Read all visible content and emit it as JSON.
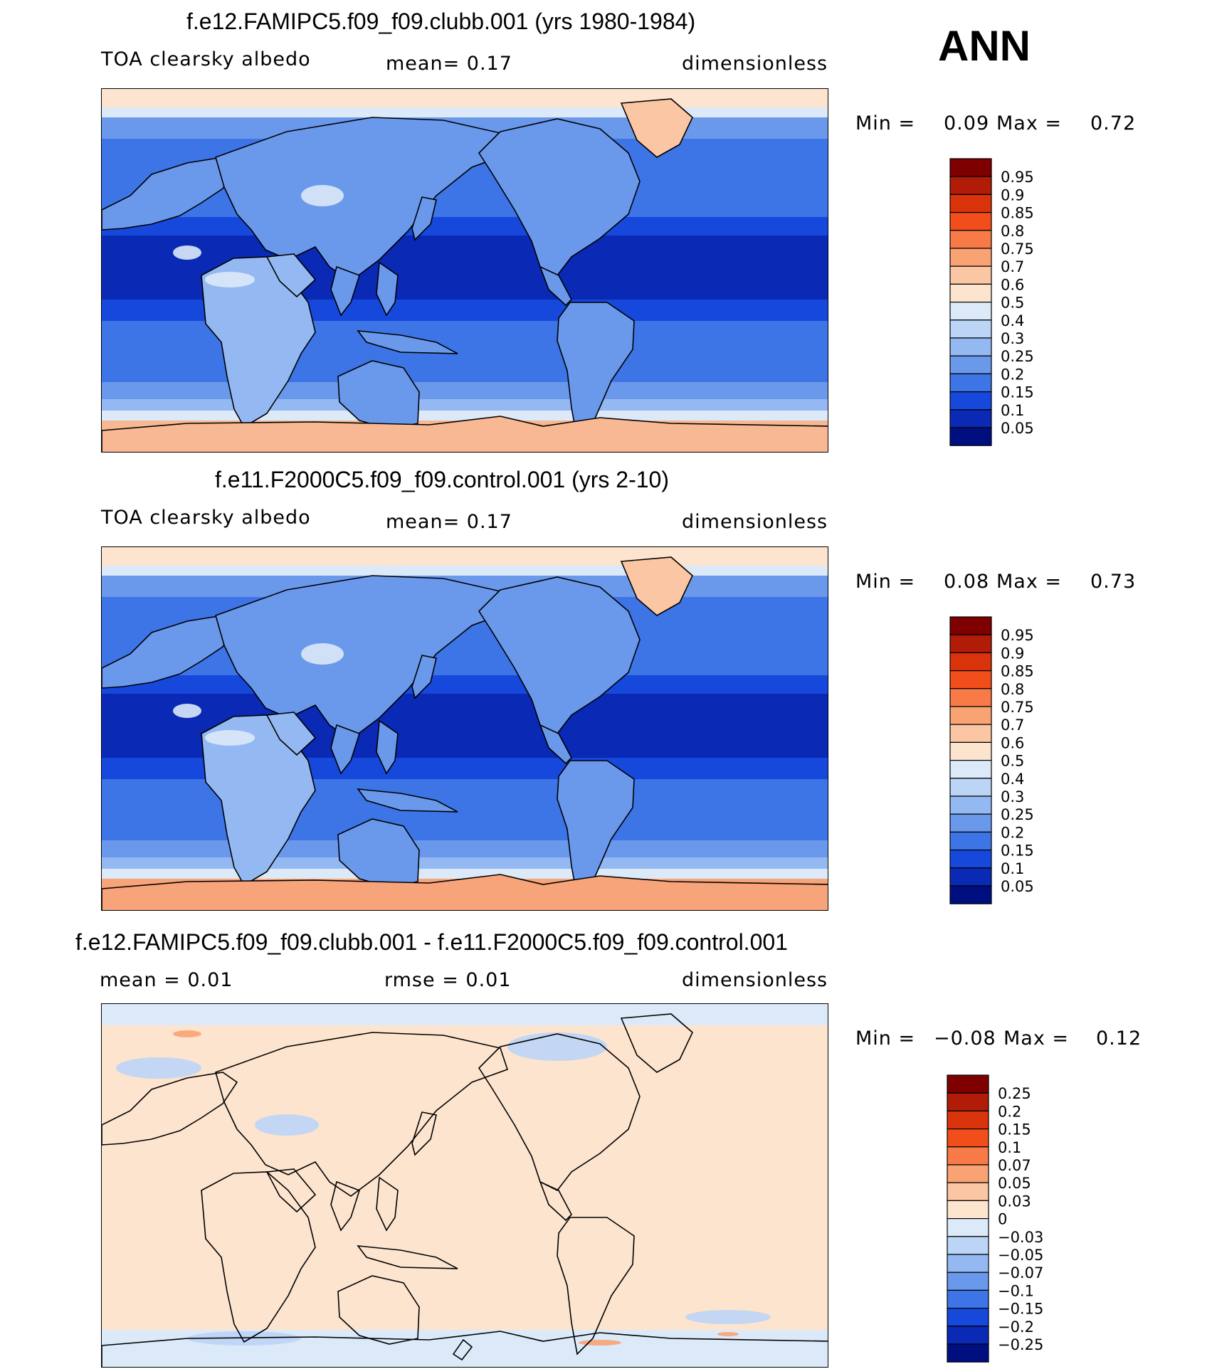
{
  "season": "ANN",
  "panels": [
    {
      "title": "f.e12.FAMIPC5.f09_f09.clubb.001 (yrs 1980-1984)",
      "left": "TOA clearsky albedo",
      "center": "mean=    0.17",
      "right": "dimensionless",
      "min_label": "Min =",
      "min_value": "0.09",
      "max_label": "Max =",
      "max_value": "0.72",
      "colorbar": {
        "labels": [
          "0.95",
          "0.9",
          "0.85",
          "0.8",
          "0.75",
          "0.7",
          "0.6",
          "0.5",
          "0.4",
          "0.3",
          "0.25",
          "0.2",
          "0.15",
          "0.1",
          "0.05"
        ],
        "colors": [
          "#7f0000",
          "#b01c08",
          "#d9330c",
          "#f24e1c",
          "#f87a46",
          "#f9a273",
          "#fbc6a3",
          "#fde4cf",
          "#dbe9f8",
          "#bcd4f6",
          "#94b9f2",
          "#6a99ec",
          "#3d74e6",
          "#1648dc",
          "#0a29b4",
          "#000f80"
        ]
      },
      "map_style": "abs",
      "polar": {
        "north": "#fde4cf",
        "south": "#f9b894"
      }
    },
    {
      "title": "f.e11.F2000C5.f09_f09.control.001 (yrs 2-10)",
      "left": "TOA clearsky albedo",
      "center": "mean=    0.17",
      "right": "dimensionless",
      "min_label": "Min =",
      "min_value": "0.08",
      "max_label": "Max =",
      "max_value": "0.73",
      "colorbar": {
        "labels": [
          "0.95",
          "0.9",
          "0.85",
          "0.8",
          "0.75",
          "0.7",
          "0.6",
          "0.5",
          "0.4",
          "0.3",
          "0.25",
          "0.2",
          "0.15",
          "0.1",
          "0.05"
        ],
        "colors": [
          "#7f0000",
          "#b01c08",
          "#d9330c",
          "#f24e1c",
          "#f87a46",
          "#f9a273",
          "#fbc6a3",
          "#fde4cf",
          "#dbe9f8",
          "#bcd4f6",
          "#94b9f2",
          "#6a99ec",
          "#3d74e6",
          "#1648dc",
          "#0a29b4",
          "#000f80"
        ]
      },
      "map_style": "abs",
      "polar": {
        "north": "#fde4cf",
        "south": "#f7a47a"
      }
    },
    {
      "title": "f.e12.FAMIPC5.f09_f09.clubb.001 - f.e11.F2000C5.f09_f09.control.001",
      "left": "mean =    0.01",
      "center": "rmse =    0.01",
      "right": "dimensionless",
      "min_label": "Min =",
      "min_value": "−0.08",
      "max_label": "Max =",
      "max_value": "0.12",
      "colorbar": {
        "labels": [
          "0.25",
          "0.2",
          "0.15",
          "0.1",
          "0.07",
          "0.05",
          "0.03",
          "0",
          "−0.03",
          "−0.05",
          "−0.07",
          "−0.1",
          "−0.15",
          "−0.2",
          "−0.25"
        ],
        "colors": [
          "#7f0000",
          "#b01c08",
          "#d9330c",
          "#f24e1c",
          "#f87a46",
          "#f9a273",
          "#fbc6a3",
          "#fde4cf",
          "#dbe9f8",
          "#bcd4f6",
          "#94b9f2",
          "#6a99ec",
          "#3d74e6",
          "#1648dc",
          "#0a29b4",
          "#000f80"
        ]
      },
      "map_style": "diff",
      "polar": {
        "north": "#dbe9f8",
        "south": "#dbe9f8"
      }
    }
  ]
}
